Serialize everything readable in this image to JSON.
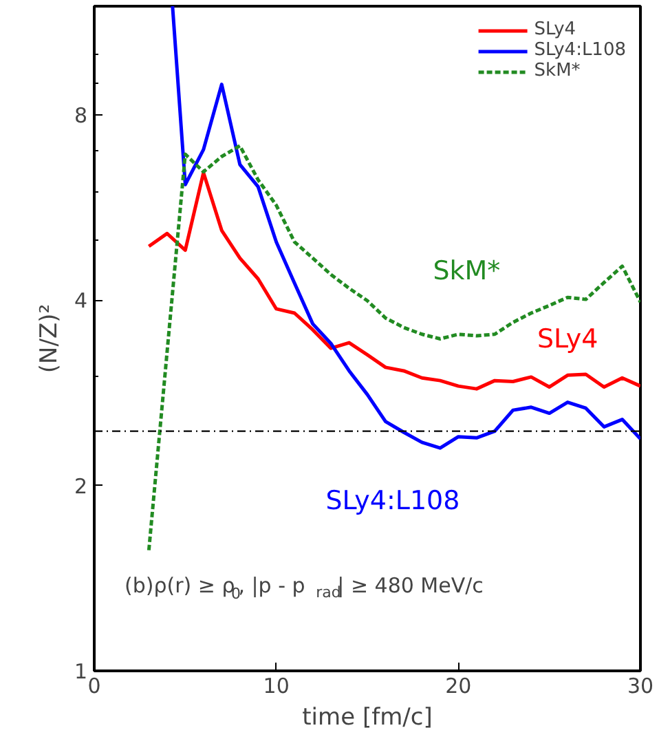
{
  "chart_data": {
    "type": "line",
    "xlabel": "time [fm/c]",
    "ylabel": "(N/Z)²",
    "xlim": [
      0,
      30
    ],
    "ylim": [
      1,
      12
    ],
    "xticks": [
      0,
      10,
      20,
      30
    ],
    "yticks": [
      1,
      2,
      4,
      8
    ],
    "log": "y",
    "grid": false,
    "legend": "top right",
    "series": [
      {
        "name": "SLy4",
        "color": "#ff0000",
        "line_style": "solid",
        "x": [
          3,
          4,
          5,
          6,
          7,
          8,
          9,
          10,
          11,
          12,
          13,
          14,
          15,
          16,
          17,
          18,
          19,
          20,
          21,
          22,
          23,
          24,
          25,
          26,
          27,
          28,
          29,
          30
        ],
        "values": [
          4.89,
          5.13,
          4.82,
          6.44,
          5.19,
          4.68,
          4.33,
          3.87,
          3.81,
          3.58,
          3.34,
          3.41,
          3.26,
          3.11,
          3.07,
          2.99,
          2.96,
          2.9,
          2.87,
          2.96,
          2.95,
          3.0,
          2.89,
          3.02,
          3.03,
          2.89,
          2.99,
          2.9
        ]
      },
      {
        "name": "SLy4:L108",
        "color": "#0000ff",
        "line_style": "solid",
        "x": [
          4.3,
          5,
          6,
          7,
          8,
          9,
          10,
          11,
          12,
          13,
          14,
          15,
          16,
          17,
          18,
          19,
          20,
          21,
          22,
          23,
          24,
          25,
          26,
          27,
          28,
          29,
          30
        ],
        "values": [
          12,
          6.16,
          7.02,
          8.96,
          6.64,
          6.11,
          4.97,
          4.26,
          3.66,
          3.4,
          3.07,
          2.81,
          2.54,
          2.44,
          2.35,
          2.3,
          2.4,
          2.39,
          2.45,
          2.65,
          2.68,
          2.62,
          2.73,
          2.67,
          2.49,
          2.56,
          2.38
        ]
      },
      {
        "name": "SkM*",
        "color": "#228b22",
        "line_style": "dashed",
        "x": [
          3,
          5,
          6,
          7,
          8,
          9,
          10,
          11,
          12,
          13,
          14,
          15,
          16,
          17,
          18,
          19,
          20,
          21,
          22,
          23,
          24,
          25,
          26,
          27,
          28,
          29,
          30
        ],
        "values": [
          1.57,
          6.9,
          6.46,
          6.84,
          7.12,
          6.27,
          5.7,
          4.97,
          4.68,
          4.4,
          4.18,
          3.99,
          3.74,
          3.61,
          3.52,
          3.46,
          3.52,
          3.5,
          3.52,
          3.68,
          3.81,
          3.92,
          4.04,
          4.01,
          4.27,
          4.54,
          3.97
        ]
      }
    ],
    "ref_lines": [
      {
        "axis": "y",
        "value": 2.45,
        "color": "#000000",
        "line_style": "dashdot"
      }
    ],
    "annotations": [
      "(b)ρ(r) ≥ ρ$_{0}$, |p - p$_{rad}$| ≥  480 MeV/c"
    ]
  }
}
